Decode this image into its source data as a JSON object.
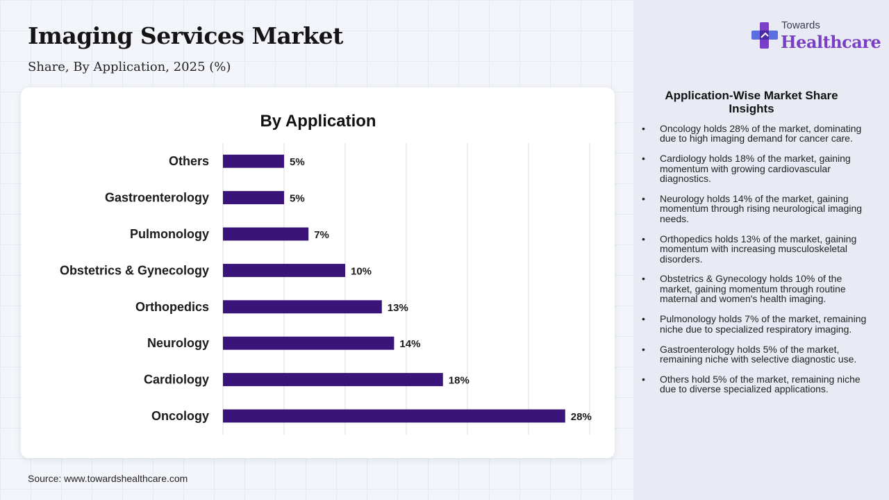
{
  "header": {
    "title": "Imaging Services Market",
    "subtitle": "Share, By Application, 2025 (%)"
  },
  "logo": {
    "line1": "Towards",
    "line2": "Healthcare",
    "icon": "medical-cross-icon"
  },
  "source": "Source: www.towardshealthcare.com",
  "colors": {
    "bar": "#3a1478",
    "brand": "#7a3fc6"
  },
  "chart_data": {
    "type": "bar",
    "orientation": "horizontal",
    "title": "By Application",
    "categories": [
      "Others",
      "Gastroenterology",
      "Pulmonology",
      "Obstetrics & Gynecology",
      "Orthopedics",
      "Neurology",
      "Cardiology",
      "Oncology"
    ],
    "values": [
      5,
      5,
      7,
      10,
      13,
      14,
      18,
      28
    ],
    "labels": [
      "5%",
      "5%",
      "7%",
      "10%",
      "13%",
      "14%",
      "18%",
      "28%"
    ],
    "xlim": [
      0,
      30
    ],
    "grid": true,
    "legend": "none"
  },
  "insights": {
    "title": "Application-Wise Market Share Insights",
    "items": [
      "Oncology holds 28% of the market, dominating due to high imaging demand for cancer care.",
      "Cardiology holds 18% of the market, gaining momentum with growing cardiovascular diagnostics.",
      "Neurology holds 14% of the market, gaining momentum through rising neurological imaging needs.",
      "Orthopedics holds 13% of the market, gaining momentum with increasing musculoskeletal disorders.",
      "Obstetrics & Gynecology holds 10% of the market, gaining momentum through routine maternal and women's health imaging.",
      "Pulmonology holds 7% of the market, remaining niche due to specialized respiratory imaging.",
      "Gastroenterology holds 5% of the market, remaining niche with selective diagnostic use.",
      "Others hold 5% of the market, remaining niche due to diverse specialized applications."
    ]
  }
}
